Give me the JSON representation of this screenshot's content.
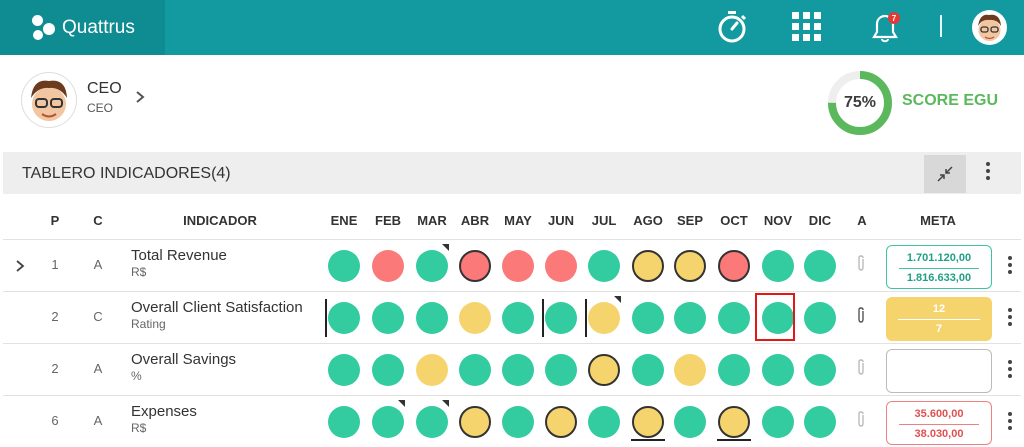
{
  "app": {
    "name": "Quattrus"
  },
  "header": {
    "notification_count": "7"
  },
  "profile": {
    "title": "CEO",
    "subtitle": "CEO"
  },
  "score": {
    "percent_label": "75%",
    "percent": 75,
    "label": "SCORE EGU"
  },
  "panel": {
    "title": "TABLERO INDICADORES(4)"
  },
  "columns": {
    "p": "P",
    "c": "C",
    "indicator": "INDICADOR",
    "months": [
      "ENE",
      "FEB",
      "MAR",
      "ABR",
      "MAY",
      "JUN",
      "JUL",
      "AGO",
      "SEP",
      "OCT",
      "NOV",
      "DIC"
    ],
    "a": "A",
    "meta": "META"
  },
  "colors": {
    "green": "#33cba0",
    "red": "#fb7978",
    "yellow": "#f6d46d",
    "topbar": "#129aa0"
  },
  "rows": [
    {
      "p": "1",
      "c": "A",
      "name": "Total Revenue",
      "unit": "R$",
      "statuses": [
        "green",
        "red",
        "green",
        "red",
        "red",
        "red",
        "green",
        "yellow",
        "yellow",
        "red",
        "green",
        "green"
      ],
      "meta_top": "1.701.120,00",
      "meta_bottom": "1.816.633,00"
    },
    {
      "p": "2",
      "c": "C",
      "name": "Overall Client Satisfaction",
      "unit": "Rating",
      "statuses": [
        "green",
        "green",
        "green",
        "yellow",
        "green",
        "green",
        "yellow",
        "green",
        "green",
        "green",
        "green",
        "green"
      ],
      "meta_top": "12",
      "meta_bottom": "7"
    },
    {
      "p": "2",
      "c": "A",
      "name": "Overall Savings",
      "unit": "%",
      "statuses": [
        "green",
        "green",
        "yellow",
        "green",
        "green",
        "green",
        "yellow",
        "green",
        "yellow",
        "green",
        "green",
        "green"
      ],
      "meta_top": "",
      "meta_bottom": ""
    },
    {
      "p": "6",
      "c": "A",
      "name": "Expenses",
      "unit": "R$",
      "statuses": [
        "green",
        "green",
        "green",
        "yellow",
        "green",
        "yellow",
        "green",
        "yellow",
        "green",
        "yellow",
        "green",
        "green"
      ],
      "meta_top": "35.600,00",
      "meta_bottom": "38.030,00"
    }
  ]
}
